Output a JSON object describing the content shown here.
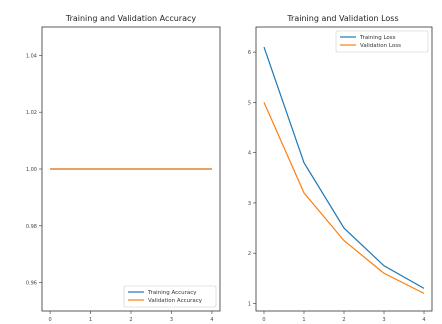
{
  "chart_data": [
    {
      "type": "line",
      "title": "Training and Validation Accuracy",
      "x": [
        0,
        1,
        2,
        3,
        4
      ],
      "x_ticks": [
        "0",
        "1",
        "2",
        "3",
        "4"
      ],
      "y_ticks": [
        "0.96",
        "0.98",
        "1.00",
        "1.02",
        "1.04"
      ],
      "ylim": [
        0.95,
        1.05
      ],
      "xlim": [
        -0.2,
        4.2
      ],
      "series": [
        {
          "name": "Training Accuracy",
          "color": "#1f77b4",
          "values": [
            1.0,
            1.0,
            1.0,
            1.0,
            1.0
          ]
        },
        {
          "name": "Validation Accuracy",
          "color": "#ff7f0e",
          "values": [
            1.0,
            1.0,
            1.0,
            1.0,
            1.0
          ]
        }
      ],
      "legend": "lower-right",
      "grid": false
    },
    {
      "type": "line",
      "title": "Training and Validation Loss",
      "x": [
        0,
        1,
        2,
        3,
        4
      ],
      "x_ticks": [
        "0",
        "1",
        "2",
        "3",
        "4"
      ],
      "y_ticks": [
        "1",
        "2",
        "3",
        "4",
        "5",
        "6"
      ],
      "ylim": [
        0.85,
        6.5
      ],
      "xlim": [
        -0.2,
        4.2
      ],
      "series": [
        {
          "name": "Training Loss",
          "color": "#1f77b4",
          "values": [
            6.1,
            3.8,
            2.5,
            1.75,
            1.3
          ]
        },
        {
          "name": "Validation Loss",
          "color": "#ff7f0e",
          "values": [
            5.0,
            3.2,
            2.25,
            1.6,
            1.2
          ]
        }
      ],
      "legend": "upper-right",
      "grid": false
    }
  ]
}
